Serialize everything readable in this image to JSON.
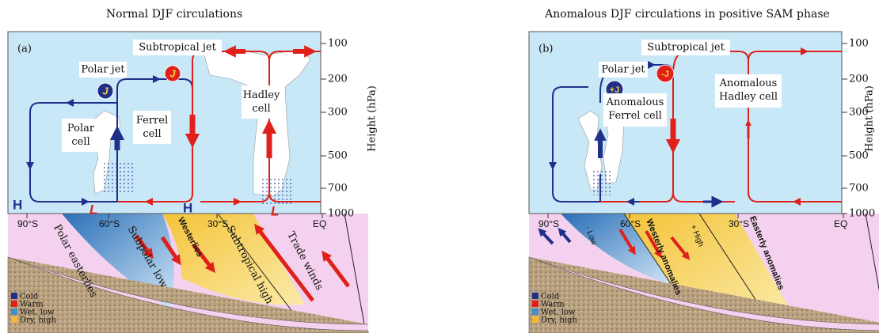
{
  "panels": [
    {
      "title": "Normal DJF circulations",
      "label": "(a)",
      "subtropical_jet": "Subtropical jet",
      "polar_jet": "Polar jet",
      "jet_markers": [
        "J",
        "J"
      ],
      "cells": [
        "Polar cell",
        "Ferrel cell",
        "Hadley cell"
      ],
      "pressure_centers": [
        "H",
        "L",
        "H",
        "L"
      ],
      "surface_labels": [
        "Polar easterlies",
        "Subpolar low",
        "Westerlies",
        "Subtropical high",
        "Trade winds"
      ]
    },
    {
      "title": "Anomalous DJF circulations in positive SAM phase",
      "label": "(b)",
      "subtropical_jet": "Subtropical jet",
      "polar_jet": "Polar jet",
      "jet_markers": [
        "+J",
        "-J"
      ],
      "cells": [
        "Anomalous Ferrel cell",
        "Anomalous Hadley cell"
      ],
      "surface_labels": [
        "- Low",
        "Westerly anomalies",
        "+ High",
        "Easterly anomalies"
      ]
    }
  ],
  "height_ticks": [
    "100",
    "200",
    "300",
    "500",
    "700",
    "1000"
  ],
  "height_label": "Height (hPa)",
  "latitudes": [
    "90°S",
    "60°S",
    "30°S",
    "EQ"
  ],
  "legend": [
    "Cold",
    "Warm",
    "Wet, low",
    "Dry, high"
  ]
}
